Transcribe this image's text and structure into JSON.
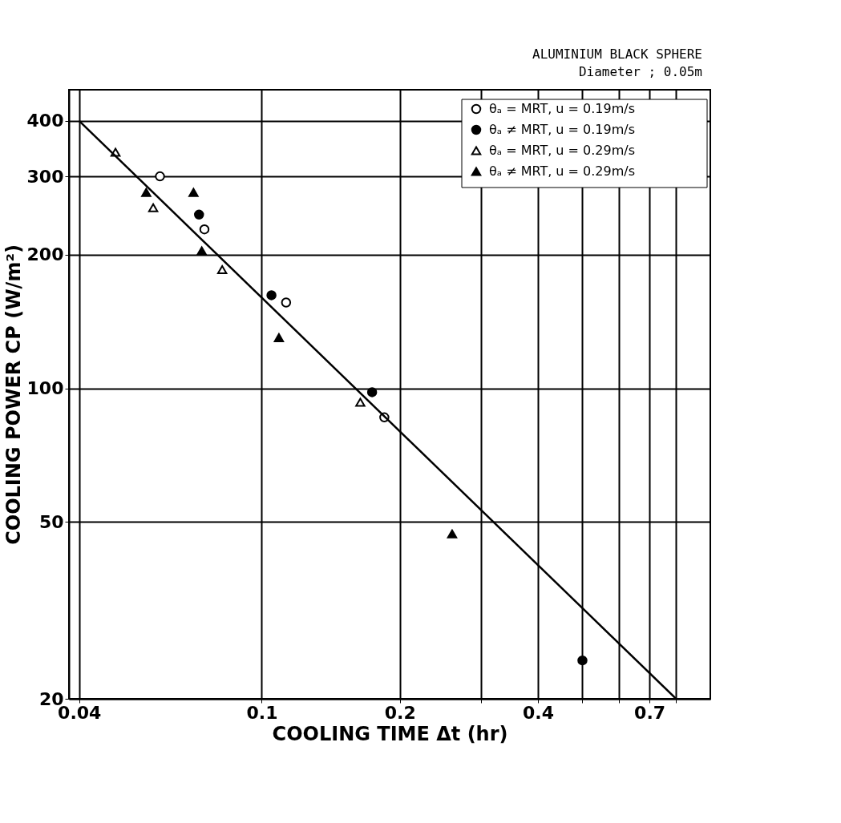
{
  "chart_data": {
    "type": "scatter",
    "xlabel": "COOLING TIME  Δt  (hr)",
    "ylabel": "COOLING POWER  CP (W/m²)",
    "annotations": [
      "ALUMINIUM BLACK SPHERE",
      "Diameter ; 0.05m"
    ],
    "xlim": [
      0.038,
      0.95
    ],
    "ylim": [
      20,
      470
    ],
    "log": "xy",
    "grid": true,
    "legend": "top right",
    "xticks": [
      0.04,
      0.1,
      0.2,
      {
        "value": 0.3,
        "label": null
      },
      0.4,
      {
        "value": 0.5,
        "label": null
      },
      {
        "value": 0.6,
        "label": null
      },
      0.7,
      {
        "value": 0.8,
        "label": null
      }
    ],
    "yticks": [
      20,
      50,
      100,
      200,
      300,
      400
    ],
    "series": [
      {
        "name": "θₐ = MRT, u = 0.19m/s",
        "color": "#ffffff",
        "marker": "circle",
        "x": [
          0.06,
          0.075,
          0.113,
          0.185
        ],
        "values": [
          300,
          228,
          156,
          86
        ]
      },
      {
        "name": "θₐ ≠ MRT, u = 0.19m/s",
        "color": "#000000",
        "marker": "circle",
        "x": [
          0.073,
          0.105,
          0.174,
          0.5
        ],
        "values": [
          246,
          162,
          98,
          24.4
        ]
      },
      {
        "name": "θₐ = MRT, u = 0.29m/s",
        "color": "#ffffff",
        "marker": "triangle",
        "x": [
          0.048,
          0.058,
          0.082,
          0.164
        ],
        "values": [
          340,
          255,
          185,
          93
        ]
      },
      {
        "name": "θₐ ≠ MRT, u = 0.29m/s",
        "color": "#000000",
        "marker": "triangle",
        "x": [
          0.056,
          0.071,
          0.074,
          0.109,
          0.26
        ],
        "values": [
          276,
          276,
          204,
          130,
          47
        ]
      },
      {
        "type": "line",
        "color": "#000000",
        "x": [
          0.04,
          0.8
        ],
        "values": [
          400,
          20
        ]
      }
    ]
  }
}
